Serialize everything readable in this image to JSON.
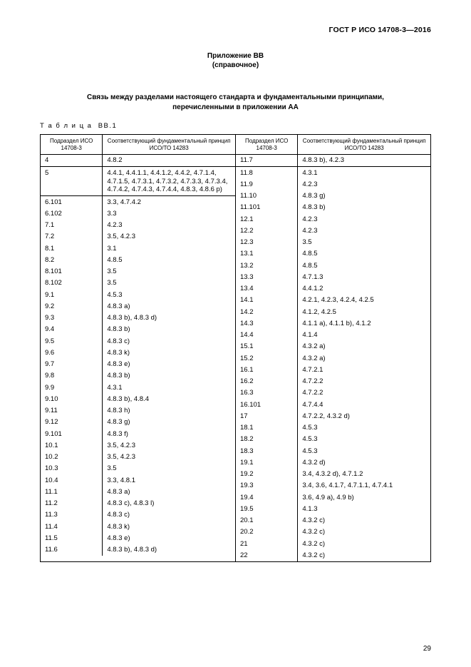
{
  "doc_id": "ГОСТ Р ИСО 14708-3—2016",
  "annex_label": "Приложение ВВ",
  "annex_note": "(справочное)",
  "title_line1": "Связь между разделами настоящего стандарта и фундаментальными принципами,",
  "title_line2": "перечисленными в приложении АА",
  "table_label": "Т а б л и ц а  ВВ.1",
  "header_col1": "Подраздел\nИСО 14708-3",
  "header_col2": "Соответствующий фундаментальный\nпринцип ИСО/ТО 14283",
  "page_number": "29",
  "left_rows": [
    {
      "a": "4",
      "b": "4.8.2",
      "div": true
    },
    {
      "a": "5",
      "b": "4.4.1, 4.4.1.1, 4.4.1.2, 4.4.2, 4.7.1.4, 4.7.1.5, 4.7.3.1, 4.7.3.2, 4.7.3.3, 4.7.3.4, 4.7.4.2, 4.7.4.3, 4.7.4.4, 4.8.3, 4.8.6 р)",
      "div": true
    },
    {
      "a": "6.101",
      "b": "3.3, 4.7.4.2"
    },
    {
      "a": "6.102",
      "b": "3.3"
    },
    {
      "a": "7.1",
      "b": "4.2.3"
    },
    {
      "a": "7.2",
      "b": "3.5, 4.2.3"
    },
    {
      "a": "8.1",
      "b": "3.1"
    },
    {
      "a": "8.2",
      "b": "4.8.5"
    },
    {
      "a": "8.101",
      "b": "3.5"
    },
    {
      "a": "8.102",
      "b": "3.5"
    },
    {
      "a": "9.1",
      "b": "4.5.3"
    },
    {
      "a": "9.2",
      "b": "4.8.3 а)"
    },
    {
      "a": "9.3",
      "b": "4.8.3 b), 4.8.3 d)"
    },
    {
      "a": "9.4",
      "b": "4.8.3 b)"
    },
    {
      "a": "9.5",
      "b": "4.8.3 с)"
    },
    {
      "a": "9.6",
      "b": "4.8.3 k)"
    },
    {
      "a": "9.7",
      "b": "4.8.3 е)"
    },
    {
      "a": "9.8",
      "b": "4.8.3 b)"
    },
    {
      "a": "9.9",
      "b": "4.3.1"
    },
    {
      "a": "9.10",
      "b": "4.8.3 b), 4.8.4"
    },
    {
      "a": "9.11",
      "b": "4.8.3 h)"
    },
    {
      "a": "9.12",
      "b": "4.8.3 g)"
    },
    {
      "a": "9.101",
      "b": "4.8.3 f)"
    },
    {
      "a": "10.1",
      "b": "3.5, 4.2.3"
    },
    {
      "a": "10.2",
      "b": "3.5, 4.2.3"
    },
    {
      "a": "10.3",
      "b": "3.5"
    },
    {
      "a": "10.4",
      "b": "3.3, 4.8.1"
    },
    {
      "a": "11.1",
      "b": "4.8.3 а)"
    },
    {
      "a": "11.2",
      "b": "4.8.3 с), 4.8.3 l)"
    },
    {
      "a": "11.3",
      "b": "4.8.3 с)"
    },
    {
      "a": "11.4",
      "b": "4.8.3 k)"
    },
    {
      "a": "11.5",
      "b": "4.8.3 е)"
    },
    {
      "a": "11.6",
      "b": "4.8.3 b), 4.8.3 d)"
    }
  ],
  "right_rows": [
    {
      "a": "11.7",
      "b": "4.8.3 b), 4.2.3",
      "div": true
    },
    {
      "a": "11.8",
      "b": "4.3.1"
    },
    {
      "a": "11.9",
      "b": "4.2.3"
    },
    {
      "a": "11.10",
      "b": "4.8.3 g)"
    },
    {
      "a": "11.101",
      "b": "4.8.3 b)"
    },
    {
      "a": "12.1",
      "b": "4.2.3"
    },
    {
      "a": "12.2",
      "b": "4.2.3"
    },
    {
      "a": "12.3",
      "b": "3.5"
    },
    {
      "a": "13.1",
      "b": "4.8.5"
    },
    {
      "a": "13.2",
      "b": "4.8.5"
    },
    {
      "a": "13.3",
      "b": "4.7.1.3"
    },
    {
      "a": "13.4",
      "b": "4.4.1.2"
    },
    {
      "a": "14.1",
      "b": "4.2.1, 4.2.3, 4.2.4, 4.2.5"
    },
    {
      "a": "14.2",
      "b": "4.1.2, 4.2.5"
    },
    {
      "a": "14.3",
      "b": "4.1.1 а), 4.1.1 b), 4.1.2"
    },
    {
      "a": "14.4",
      "b": "4.1.4"
    },
    {
      "a": "15.1",
      "b": "4.3.2 а)"
    },
    {
      "a": "15.2",
      "b": "4.3.2 а)"
    },
    {
      "a": "16.1",
      "b": "4.7.2.1"
    },
    {
      "a": "16.2",
      "b": "4.7.2.2"
    },
    {
      "a": "16.3",
      "b": "4.7.2.2"
    },
    {
      "a": "16.101",
      "b": "4.7.4.4"
    },
    {
      "a": "17",
      "b": "4.7.2.2, 4.3.2 d)"
    },
    {
      "a": "18.1",
      "b": "4.5.3"
    },
    {
      "a": "18.2",
      "b": "4.5.3"
    },
    {
      "a": "18.3",
      "b": "4.5.3"
    },
    {
      "a": "19.1",
      "b": "4.3.2 d)"
    },
    {
      "a": "19.2",
      "b": "3.4, 4.3.2 d), 4.7.1.2"
    },
    {
      "a": "19.3",
      "b": "3.4, 3.6, 4.1.7, 4.7.1.1, 4.7.4.1"
    },
    {
      "a": "19.4",
      "b": "3.6, 4.9 а), 4.9 b)"
    },
    {
      "a": "19.5",
      "b": "4.1.3"
    },
    {
      "a": "20.1",
      "b": "4.3.2 с)"
    },
    {
      "a": "20.2",
      "b": "4.3.2 с)"
    },
    {
      "a": "21",
      "b": "4.3.2 с)"
    },
    {
      "a": "22",
      "b": "4.3.2 с)"
    }
  ]
}
